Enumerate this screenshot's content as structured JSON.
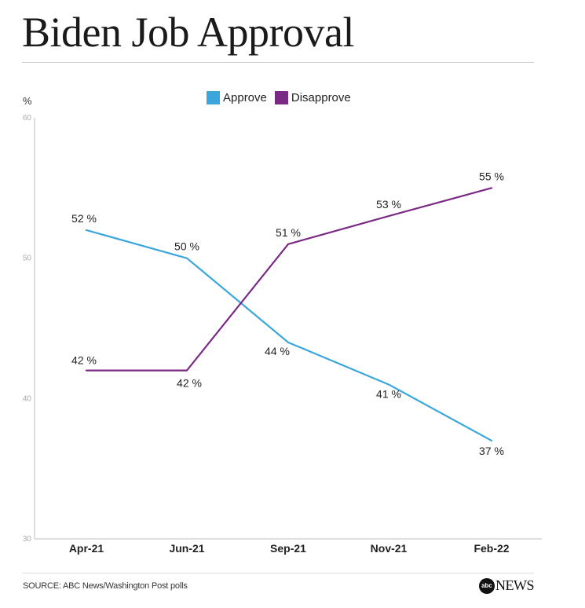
{
  "title": "Biden Job Approval",
  "unit_label": "%",
  "source": "SOURCE: ABC News/Washington Post polls",
  "brand": {
    "logo": "abc",
    "name": "NEWS"
  },
  "colors": {
    "approve": "#3ba6dc",
    "disapprove": "#7a2a84",
    "axis": "#bdbdbd"
  },
  "chart_data": {
    "type": "line",
    "title": "Biden Job Approval",
    "xlabel": "",
    "ylabel": "%",
    "categories": [
      "Apr-21",
      "Jun-21",
      "Sep-21",
      "Nov-21",
      "Feb-22"
    ],
    "ylim": [
      30,
      60
    ],
    "yticks": [
      30,
      40,
      50,
      60
    ],
    "grid": false,
    "legend": "top-center",
    "series": [
      {
        "name": "Approve",
        "values": [
          52,
          50,
          44,
          41,
          37
        ],
        "labels": [
          "52 %",
          "50 %",
          "44 %",
          "41 %",
          "37 %"
        ]
      },
      {
        "name": "Disapprove",
        "values": [
          42,
          42,
          51,
          53,
          55
        ],
        "labels": [
          "42 %",
          "42 %",
          "51 %",
          "53 %",
          "55 %"
        ]
      }
    ]
  }
}
